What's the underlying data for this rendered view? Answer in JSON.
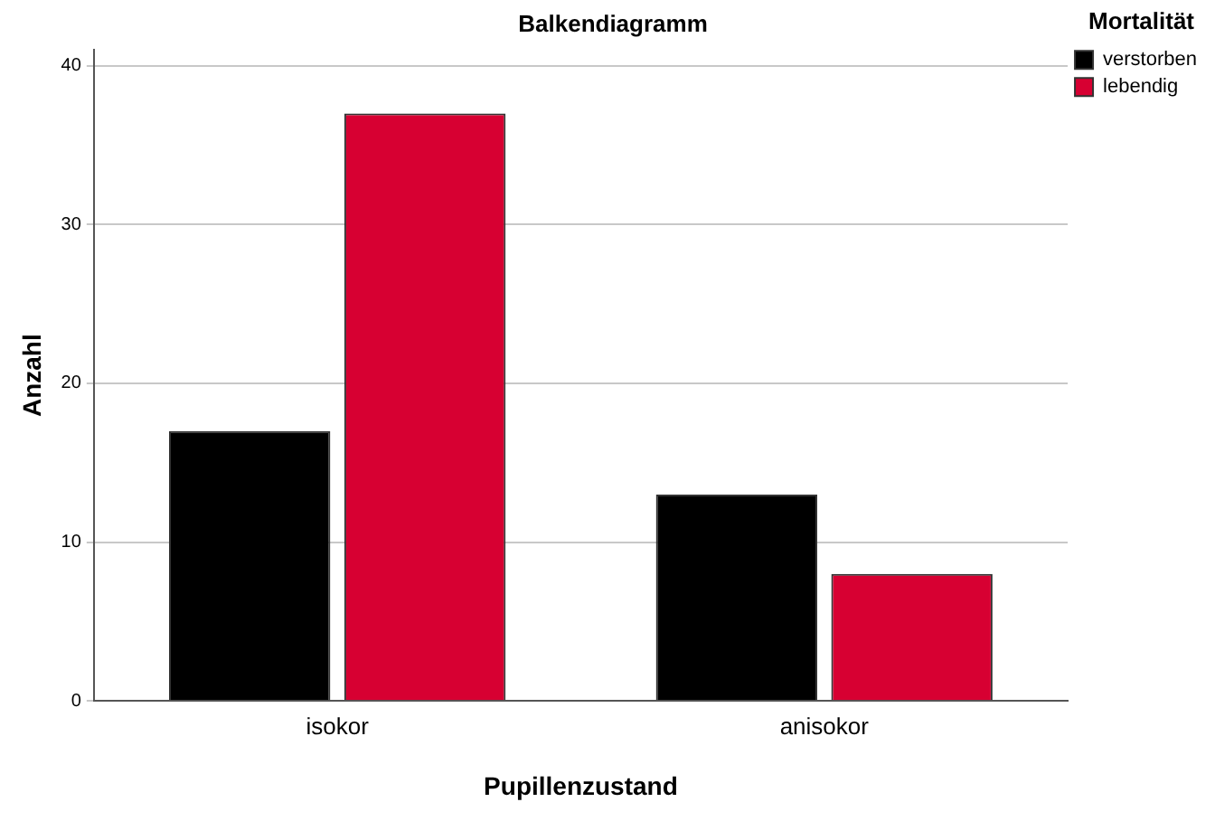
{
  "chart_data": {
    "type": "bar",
    "title": "Balkendiagramm",
    "xlabel": "Pupillenzustand",
    "ylabel": "Anzahl",
    "legend_title": "Mortalität",
    "categories": [
      "isokor",
      "anisokor"
    ],
    "series": [
      {
        "name": "verstorben",
        "color": "#000000",
        "values": [
          17,
          13
        ]
      },
      {
        "name": "lebendig",
        "color": "#d70032",
        "values": [
          37,
          8
        ]
      }
    ],
    "ylim": [
      0,
      41
    ],
    "yticks": [
      0,
      10,
      20,
      30,
      40
    ],
    "grid": "y",
    "legend": "top right"
  }
}
